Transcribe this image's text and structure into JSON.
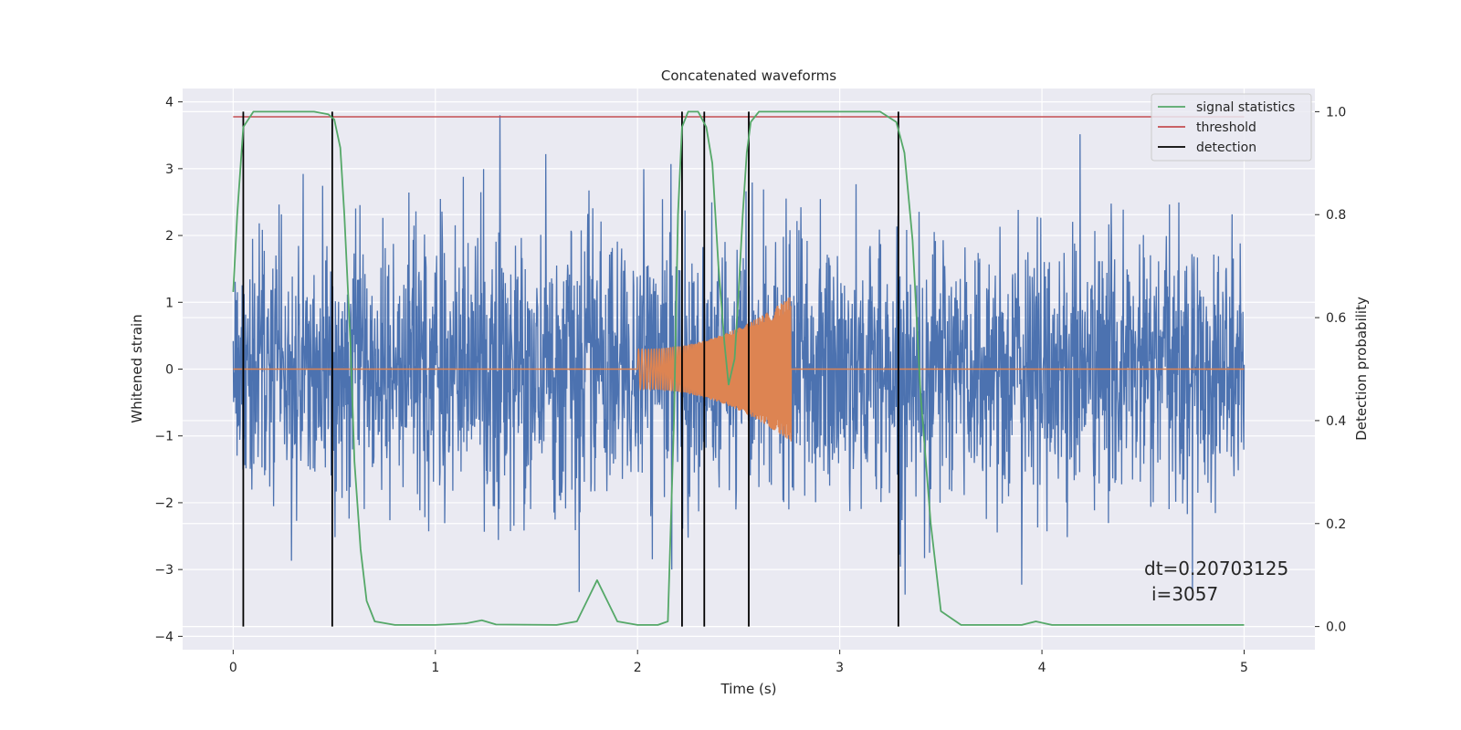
{
  "chart_data": {
    "type": "line",
    "title": "Concatenated waveforms",
    "xlabel": "Time (s)",
    "ylabel": "Whitened strain",
    "y2label": "Detection probability",
    "xlim": [
      -0.25,
      5.35
    ],
    "ylim": [
      -4.2,
      4.2
    ],
    "y2lim": [
      -0.045,
      1.045
    ],
    "xticks": [
      0,
      1,
      2,
      3,
      4,
      5
    ],
    "yticks": [
      -4,
      -3,
      -2,
      -1,
      0,
      1,
      2,
      3,
      4
    ],
    "y2ticks": [
      0.0,
      0.2,
      0.4,
      0.6,
      0.8,
      1.0
    ],
    "grid": true,
    "legend_position": "top-right",
    "legend": [
      "signal statistics",
      "threshold",
      "detection"
    ],
    "colors": {
      "strain": "#4c72b0",
      "injection": "#dd8452",
      "statistic": "#55a868",
      "threshold": "#c44e52",
      "detection": "#000000"
    },
    "strain_noise": {
      "x_range": [
        0,
        5
      ],
      "typical_amplitude": 1.0,
      "peak_amplitude": 3.8
    },
    "injection": {
      "x_range": [
        2.0,
        2.76
      ],
      "start_amplitude": 0.3,
      "end_amplitude": 1.1
    },
    "threshold": 0.99,
    "detections": [
      0.05,
      0.49,
      2.22,
      2.33,
      2.55,
      3.29
    ],
    "statistic": {
      "x": [
        0,
        0.02,
        0.05,
        0.1,
        0.2,
        0.3,
        0.4,
        0.47,
        0.5,
        0.53,
        0.55,
        0.58,
        0.6,
        0.63,
        0.66,
        0.7,
        0.8,
        1.0,
        1.15,
        1.23,
        1.3,
        1.6,
        1.7,
        1.75,
        1.8,
        1.85,
        1.9,
        2.0,
        2.1,
        2.15,
        2.18,
        2.2,
        2.22,
        2.25,
        2.3,
        2.34,
        2.37,
        2.4,
        2.43,
        2.45,
        2.48,
        2.5,
        2.52,
        2.54,
        2.56,
        2.6,
        2.7,
        3.0,
        3.2,
        3.28,
        3.32,
        3.36,
        3.4,
        3.45,
        3.5,
        3.6,
        3.9,
        3.97,
        4.05,
        4.5,
        5.0
      ],
      "y": [
        0.65,
        0.8,
        0.97,
        1.0,
        1.0,
        1.0,
        1.0,
        0.995,
        0.985,
        0.93,
        0.8,
        0.55,
        0.32,
        0.15,
        0.05,
        0.01,
        0.003,
        0.003,
        0.006,
        0.012,
        0.004,
        0.003,
        0.01,
        0.05,
        0.09,
        0.05,
        0.01,
        0.003,
        0.003,
        0.01,
        0.4,
        0.8,
        0.97,
        1.0,
        1.0,
        0.97,
        0.9,
        0.7,
        0.55,
        0.47,
        0.52,
        0.65,
        0.8,
        0.92,
        0.98,
        1.0,
        1.0,
        1.0,
        1.0,
        0.98,
        0.92,
        0.75,
        0.45,
        0.2,
        0.03,
        0.003,
        0.003,
        0.01,
        0.003,
        0.003,
        0.003
      ]
    },
    "annotation": [
      "dt=0.20703125",
      "i=3057"
    ]
  }
}
